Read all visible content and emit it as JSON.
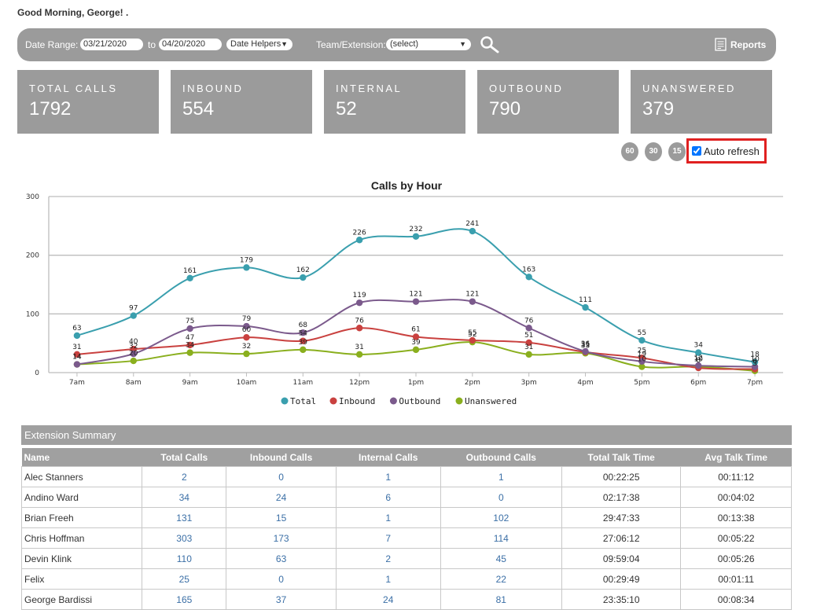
{
  "greeting": "Good Morning, George!  .",
  "filter": {
    "date_range_label": "Date Range:",
    "date_from": "03/21/2020",
    "to_label": "to",
    "date_to": "04/20/2020",
    "date_helpers": "Date Helpers",
    "team_label": "Team/Extension:",
    "team_value": "(select)",
    "reports_label": "Reports"
  },
  "stats": [
    {
      "title": "TOTAL CALLS",
      "value": "1792"
    },
    {
      "title": "INBOUND",
      "value": "554"
    },
    {
      "title": "INTERNAL",
      "value": "52"
    },
    {
      "title": "OUTBOUND",
      "value": "790"
    },
    {
      "title": "UNANSWERED",
      "value": "379"
    }
  ],
  "refresh": {
    "intervals": [
      "60",
      "30",
      "15"
    ],
    "auto_refresh_label": "Auto refresh",
    "checked": true
  },
  "chart_data": {
    "type": "line",
    "title": "Calls by Hour",
    "categories": [
      "7am",
      "8am",
      "9am",
      "10am",
      "11am",
      "12pm",
      "1pm",
      "2pm",
      "3pm",
      "4pm",
      "5pm",
      "6pm",
      "7pm"
    ],
    "ylim": [
      0,
      300
    ],
    "yticks": [
      0,
      100,
      200,
      300
    ],
    "grid": true,
    "legend": "bottom",
    "series": [
      {
        "name": "Total",
        "color": "#3a9fae",
        "values": [
          63,
          97,
          161,
          179,
          162,
          226,
          232,
          241,
          163,
          111,
          55,
          34,
          18
        ]
      },
      {
        "name": "Inbound",
        "color": "#c9413f",
        "values": [
          31,
          40,
          47,
          60,
          54,
          76,
          61,
          55,
          51,
          35,
          25,
          8,
          6
        ]
      },
      {
        "name": "Outbound",
        "color": "#7b5a8c",
        "values": [
          14,
          32,
          75,
          79,
          68,
          119,
          121,
          121,
          76,
          36,
          19,
          12,
          10
        ]
      },
      {
        "name": "Unanswered",
        "color": "#8aaf1e",
        "values": [
          14,
          20,
          34,
          32,
          39,
          31,
          39,
          52,
          31,
          33,
          10,
          10,
          3
        ]
      }
    ]
  },
  "summary": {
    "title": "Extension Summary",
    "columns": [
      "Name",
      "Total Calls",
      "Inbound Calls",
      "Internal Calls",
      "Outbound Calls",
      "Total Talk Time",
      "Avg Talk Time"
    ],
    "rows": [
      [
        "Alec Stanners",
        "2",
        "0",
        "1",
        "1",
        "00:22:25",
        "00:11:12"
      ],
      [
        "Andino Ward",
        "34",
        "24",
        "6",
        "0",
        "02:17:38",
        "00:04:02"
      ],
      [
        "Brian Freeh",
        "131",
        "15",
        "1",
        "102",
        "29:47:33",
        "00:13:38"
      ],
      [
        "Chris Hoffman",
        "303",
        "173",
        "7",
        "114",
        "27:06:12",
        "00:05:22"
      ],
      [
        "Devin Klink",
        "110",
        "63",
        "2",
        "45",
        "09:59:04",
        "00:05:26"
      ],
      [
        "Felix",
        "25",
        "0",
        "1",
        "22",
        "00:29:49",
        "00:01:11"
      ],
      [
        "George Bardissi",
        "165",
        "37",
        "24",
        "81",
        "23:35:10",
        "00:08:34"
      ]
    ]
  }
}
